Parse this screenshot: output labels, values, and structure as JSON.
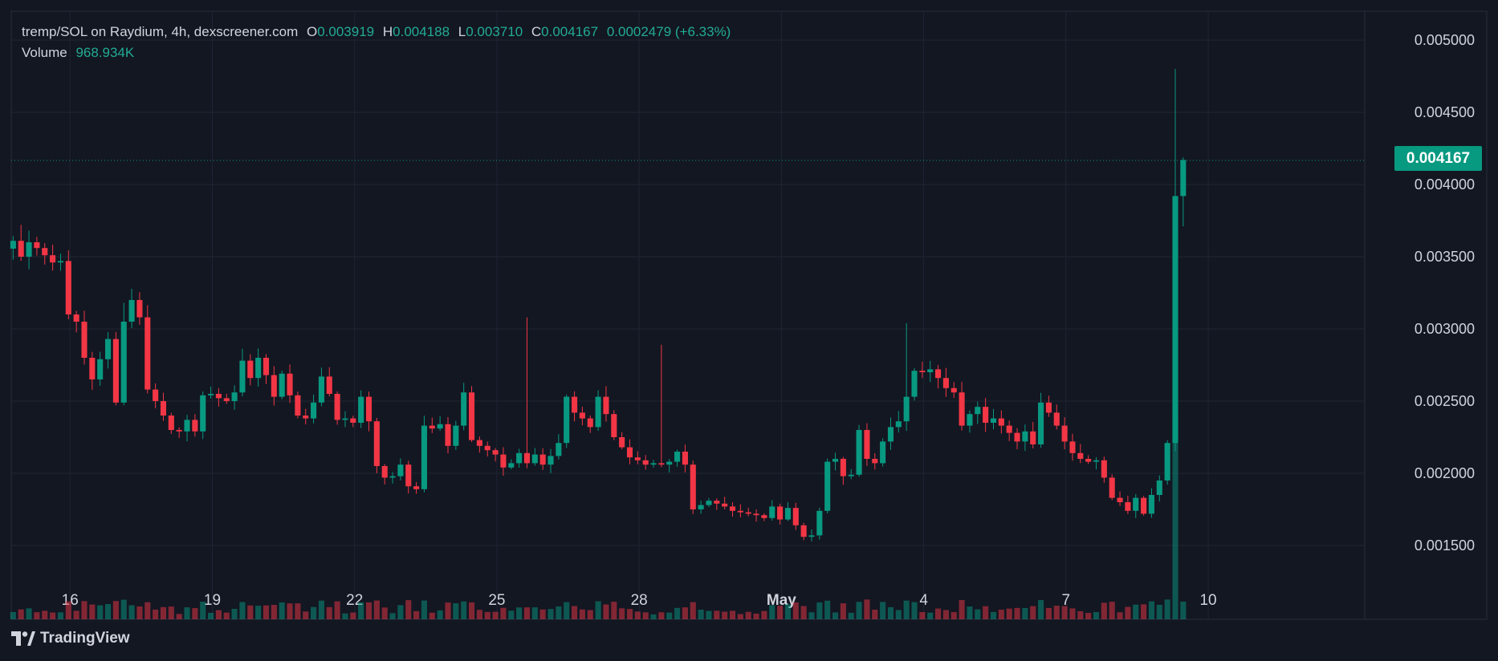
{
  "header": {
    "symbol_line": "tremp/SOL on Raydium, 4h, dexscreener.com",
    "ohlc": [
      {
        "key": "O",
        "value": "0.003919"
      },
      {
        "key": "H",
        "value": "0.004188"
      },
      {
        "key": "L",
        "value": "0.003710"
      },
      {
        "key": "C",
        "value": "0.004167"
      }
    ],
    "change": "0.0002479 (+6.33%)",
    "volume_label": "Volume",
    "volume_value": "968.934K"
  },
  "last_price": "0.004167",
  "brand": "TradingView",
  "colors": {
    "background": "#131722",
    "grid": "#1f2433",
    "up": "#089981",
    "down": "#f23645",
    "text": "#d1d4dc",
    "legend_value": "#22ab94"
  },
  "chart_data": {
    "type": "candlestick",
    "interval": "4h",
    "ylim": [
      0.00125,
      0.0052
    ],
    "y_ticks": [
      "0.001500",
      "0.002000",
      "0.002500",
      "0.003000",
      "0.003500",
      "0.004000",
      "0.004500",
      "0.005000"
    ],
    "x_ticks": [
      {
        "label": "16",
        "day": 16
      },
      {
        "label": "19",
        "day": 19
      },
      {
        "label": "22",
        "day": 22
      },
      {
        "label": "25",
        "day": 25
      },
      {
        "label": "28",
        "day": 28
      },
      {
        "label": "May",
        "day": 31
      },
      {
        "label": "4",
        "day": 34
      },
      {
        "label": "7",
        "day": 37
      },
      {
        "label": "10",
        "day": 40
      }
    ],
    "x_range": [
      14.76,
      43.3
    ],
    "candle_day_start": 14.8,
    "candle_step_days": 0.1667,
    "closes": [
      0.00361,
      0.0035,
      0.0036,
      0.00356,
      0.00351,
      0.00346,
      0.00347,
      0.0031,
      0.00305,
      0.0028,
      0.00265,
      0.00279,
      0.00293,
      0.00249,
      0.00305,
      0.0032,
      0.00308,
      0.00258,
      0.0025,
      0.0024,
      0.0023,
      0.00229,
      0.00237,
      0.00229,
      0.00254,
      0.00255,
      0.00252,
      0.0025,
      0.00256,
      0.00278,
      0.00266,
      0.0028,
      0.00268,
      0.00253,
      0.00269,
      0.00254,
      0.0024,
      0.00238,
      0.00249,
      0.00267,
      0.00255,
      0.00237,
      0.00238,
      0.00235,
      0.00253,
      0.00236,
      0.00205,
      0.00197,
      0.00198,
      0.00206,
      0.00191,
      0.00189,
      0.00233,
      0.00231,
      0.00234,
      0.00219,
      0.00233,
      0.00256,
      0.00223,
      0.00219,
      0.00216,
      0.00213,
      0.00204,
      0.00207,
      0.00214,
      0.00207,
      0.00213,
      0.00206,
      0.00212,
      0.00221,
      0.00253,
      0.00242,
      0.00238,
      0.00232,
      0.00253,
      0.00241,
      0.00225,
      0.00218,
      0.00211,
      0.00209,
      0.00206,
      0.00207,
      0.00206,
      0.00208,
      0.00215,
      0.00206,
      0.00175,
      0.00178,
      0.00181,
      0.00179,
      0.00177,
      0.00174,
      0.00173,
      0.00172,
      0.00171,
      0.00169,
      0.00177,
      0.00168,
      0.00176,
      0.00164,
      0.00156,
      0.00157,
      0.00174,
      0.00208,
      0.0021,
      0.00198,
      0.00199,
      0.0023,
      0.0021,
      0.00207,
      0.00222,
      0.00232,
      0.00236,
      0.00253,
      0.00271,
      0.0027,
      0.00272,
      0.00266,
      0.00259,
      0.00256,
      0.00233,
      0.00241,
      0.00246,
      0.00235,
      0.00238,
      0.00233,
      0.00228,
      0.00222,
      0.00229,
      0.0022,
      0.00249,
      0.00242,
      0.00233,
      0.00222,
      0.00214,
      0.0021,
      0.00208,
      0.00209,
      0.00197,
      0.00183,
      0.0018,
      0.00174,
      0.00183,
      0.00172,
      0.00185,
      0.00195,
      0.00221,
      0.00392,
      0.00417
    ]
  }
}
